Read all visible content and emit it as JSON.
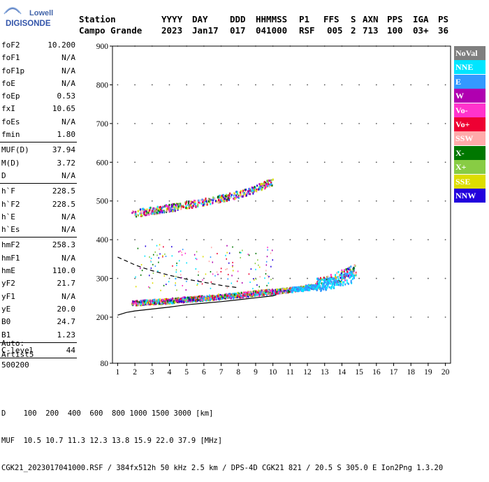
{
  "logo": {
    "line1": "Lowell",
    "line2": "DIGISONDE"
  },
  "header": {
    "labels": [
      "Station",
      "YYYY",
      "DAY",
      "DDD",
      "HHMMSS",
      "P1",
      "FFS",
      "S",
      "AXN",
      "PPS",
      "IGA",
      "PS"
    ],
    "values": [
      "Campo Grande",
      "2023",
      "Jan17",
      "017",
      "041000",
      "RSF",
      "005",
      "2",
      "713",
      "100",
      "03+",
      "36"
    ]
  },
  "params": {
    "group1": [
      {
        "name": "foF2",
        "value": "10.200"
      },
      {
        "name": "foF1",
        "value": "N/A"
      },
      {
        "name": "foF1p",
        "value": "N/A"
      },
      {
        "name": "foE",
        "value": "N/A"
      },
      {
        "name": "foEp",
        "value": "0.53"
      },
      {
        "name": "fxI",
        "value": "10.65"
      },
      {
        "name": "foEs",
        "value": "N/A"
      },
      {
        "name": "fmin",
        "value": "1.80"
      }
    ],
    "group2": [
      {
        "name": "MUF(D)",
        "value": "37.94"
      },
      {
        "name": "M(D)",
        "value": "3.72"
      },
      {
        "name": "D",
        "value": "N/A"
      }
    ],
    "group3": [
      {
        "name": "h`F",
        "value": "228.5"
      },
      {
        "name": "h`F2",
        "value": "228.5"
      },
      {
        "name": "h`E",
        "value": "N/A"
      },
      {
        "name": "h`Es",
        "value": "N/A"
      }
    ],
    "group4": [
      {
        "name": "hmF2",
        "value": "258.3"
      },
      {
        "name": "hmF1",
        "value": "N/A"
      },
      {
        "name": "hmE",
        "value": "110.0"
      },
      {
        "name": "yF2",
        "value": "21.7"
      },
      {
        "name": "yF1",
        "value": "N/A"
      },
      {
        "name": "yE",
        "value": "20.0"
      },
      {
        "name": "B0",
        "value": "24.7"
      },
      {
        "name": "B1",
        "value": "1.23"
      }
    ],
    "group5": [
      {
        "name": "C-level",
        "value": "44"
      }
    ]
  },
  "auto": {
    "line1": "Auto:",
    "line2": "Artist5",
    "line3": "500200"
  },
  "legend": [
    {
      "label": "NoVal",
      "color": "#7f7f7f"
    },
    {
      "label": "NNE",
      "color": "#00e5ff"
    },
    {
      "label": "E",
      "color": "#3399ff"
    },
    {
      "label": "W",
      "color": "#b000b0"
    },
    {
      "label": "Vo-",
      "color": "#ff33cc"
    },
    {
      "label": "Vo+",
      "color": "#ee0033"
    },
    {
      "label": "SSW",
      "color": "#ffaaaa"
    },
    {
      "label": "X-",
      "color": "#007700"
    },
    {
      "label": "X+",
      "color": "#88cc44"
    },
    {
      "label": "SSE",
      "color": "#dddd00"
    },
    {
      "label": "NNW",
      "color": "#2200dd"
    }
  ],
  "footer": {
    "line1": "D    100  200  400  600  800 1000 1500 3000 [km]",
    "line2": "MUF  10.5 10.7 11.3 12.3 13.8 15.9 22.0 37.9 [MHz]",
    "line3": "CGK21_2023017041000.RSF / 384fx512h 50 kHz 2.5 km / DPS-4D CGK21 821 / 20.5 S 305.0 E Ion2Png 1.3.20"
  },
  "chart_data": {
    "type": "scatter",
    "title": "",
    "xlabel": "",
    "ylabel": "",
    "xlim": [
      1,
      20
    ],
    "ylim": [
      80,
      900
    ],
    "xticks": [
      1,
      2,
      3,
      4,
      5,
      6,
      7,
      8,
      9,
      10,
      11,
      12,
      13,
      14,
      15,
      16,
      17,
      18,
      19,
      20
    ],
    "yticks": [
      80,
      200,
      300,
      400,
      500,
      600,
      700,
      800,
      900
    ],
    "grid": true,
    "legend_position": "right",
    "traces": [
      {
        "name": "F2 o-trace",
        "x": [
          1.8,
          2.5,
          3.5,
          4.5,
          5.5,
          6.5,
          7.5,
          8.5,
          9.5,
          10.2,
          10.5,
          11.5,
          12.5,
          13.2,
          13.8,
          14.3,
          14.8
        ],
        "y": [
          235,
          238,
          240,
          243,
          247,
          250,
          254,
          258,
          263,
          266,
          268,
          273,
          281,
          290,
          300,
          310,
          320
        ]
      },
      {
        "name": "F2 x-trace",
        "x": [
          2.0,
          3.0,
          4.0,
          5.0,
          6.0,
          7.0,
          8.0,
          9.0,
          10.0,
          11.0,
          12.0,
          13.0,
          14.0,
          14.7
        ],
        "y": [
          236,
          239,
          242,
          246,
          249,
          253,
          257,
          262,
          266,
          270,
          275,
          281,
          292,
          302
        ]
      },
      {
        "name": "F2 2nd hop",
        "x": [
          1.8,
          2.5,
          3.5,
          4.5,
          5.5,
          6.5,
          7.5,
          8.5,
          9.0,
          9.5,
          10.0
        ],
        "y": [
          466,
          470,
          477,
          484,
          492,
          500,
          510,
          522,
          530,
          540,
          550
        ]
      }
    ],
    "profile_curve": {
      "x": [
        1.0,
        1.5,
        2.0,
        3.0,
        4.0,
        5.0,
        6.0,
        7.0,
        8.0,
        9.0,
        10.0,
        10.2
      ],
      "y": [
        205,
        212,
        216,
        221,
        226,
        232,
        236,
        240,
        245,
        250,
        255,
        258
      ]
    },
    "topside_dashed_curve": {
      "x": [
        1.0,
        1.5,
        2.0,
        2.5,
        3.0,
        4.0,
        5.0,
        6.0,
        7.0,
        8.0
      ],
      "y": [
        355,
        345,
        335,
        327,
        320,
        308,
        298,
        290,
        282,
        276
      ]
    }
  }
}
